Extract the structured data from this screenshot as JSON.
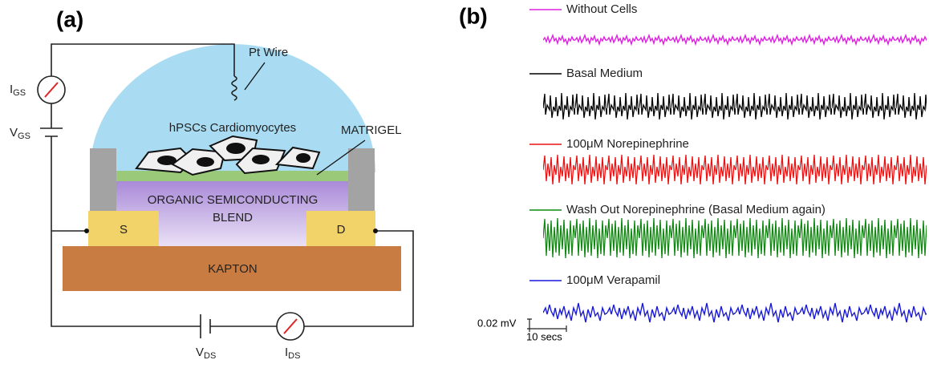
{
  "panel_a": {
    "label": "(a)",
    "pt_wire": "Pt Wire",
    "matrigel": "MATRIGEL",
    "cells": "hPSCs Cardiomyocytes",
    "semiconductor": [
      "ORGANIC SEMICONDUCTING",
      "BLEND"
    ],
    "source": "S",
    "drain": "D",
    "substrate": "KAPTON",
    "i_gs": {
      "main": "I",
      "sub": "GS"
    },
    "v_gs": {
      "main": "V",
      "sub": "GS"
    },
    "v_ds": {
      "main": "V",
      "sub": "DS"
    },
    "i_ds": {
      "main": "I",
      "sub": "DS"
    }
  },
  "panel_b": {
    "label": "(b)",
    "traces": [
      {
        "name": "Without Cells",
        "color": "#e020e0"
      },
      {
        "name": "Basal Medium",
        "color": "#000000"
      },
      {
        "name": "100μM Norepinephrine",
        "color": "#ee1111"
      },
      {
        "name": "Wash Out Norepinephrine (Basal Medium again)",
        "color": "#118811"
      },
      {
        "name": "100μM Verapamil",
        "color": "#1a1ad8"
      }
    ],
    "scale_y": "0.02 mV",
    "scale_x": "10 secs"
  }
}
